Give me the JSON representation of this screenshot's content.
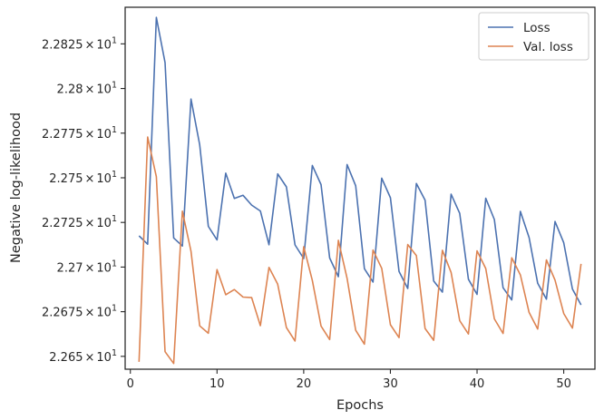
{
  "chart_data": {
    "type": "line",
    "xlabel": "Epochs",
    "ylabel": "Negative log-likelihood",
    "xlim": [
      -0.6,
      53.6
    ],
    "ylim": [
      22.6428,
      22.8455
    ],
    "grid": false,
    "legend_position": "top-right",
    "xticks": [
      0,
      10,
      20,
      30,
      40,
      50
    ],
    "yticks": [
      {
        "value": 22.65,
        "mantissa": "2.265",
        "exponent": "1"
      },
      {
        "value": 22.675,
        "mantissa": "2.2675",
        "exponent": "1"
      },
      {
        "value": 22.7,
        "mantissa": "2.27",
        "exponent": "1"
      },
      {
        "value": 22.725,
        "mantissa": "2.2725",
        "exponent": "1"
      },
      {
        "value": 22.75,
        "mantissa": "2.275",
        "exponent": "1"
      },
      {
        "value": 22.775,
        "mantissa": "2.2775",
        "exponent": "1"
      },
      {
        "value": 22.8,
        "mantissa": "2.28",
        "exponent": "1"
      },
      {
        "value": 22.825,
        "mantissa": "2.2825",
        "exponent": "1"
      }
    ],
    "tick_times": "×",
    "tick_base": "10",
    "x": [
      1,
      2,
      3,
      4,
      5,
      6,
      7,
      8,
      9,
      10,
      11,
      12,
      13,
      14,
      15,
      16,
      17,
      18,
      19,
      20,
      21,
      22,
      23,
      24,
      25,
      26,
      27,
      28,
      29,
      30,
      31,
      32,
      33,
      34,
      35,
      36,
      37,
      38,
      39,
      40,
      41,
      42,
      43,
      44,
      45,
      46,
      47,
      48,
      49,
      50,
      51,
      52
    ],
    "series": [
      {
        "name": "Loss",
        "color": "#4c72b0",
        "values": [
          22.7175,
          22.7128,
          22.8398,
          22.8145,
          22.7163,
          22.7118,
          22.7941,
          22.7685,
          22.7228,
          22.7152,
          22.7526,
          22.7384,
          22.7402,
          22.7347,
          22.7314,
          22.7125,
          22.7522,
          22.7449,
          22.7124,
          22.7048,
          22.7569,
          22.7462,
          22.7051,
          22.6946,
          22.7574,
          22.7455,
          22.6991,
          22.6916,
          22.7498,
          22.7388,
          22.6975,
          22.688,
          22.7468,
          22.7375,
          22.6922,
          22.686,
          22.7408,
          22.7301,
          22.6932,
          22.6847,
          22.7385,
          22.7266,
          22.6884,
          22.6816,
          22.7312,
          22.7165,
          22.6909,
          22.682,
          22.7255,
          22.7136,
          22.6877,
          22.6788
        ]
      },
      {
        "name": "Val. loss",
        "color": "#dd8452",
        "values": [
          22.6469,
          22.7728,
          22.7506,
          22.6526,
          22.646,
          22.7313,
          22.7089,
          22.6671,
          22.6629,
          22.6986,
          22.6845,
          22.6874,
          22.6832,
          22.6829,
          22.6672,
          22.6998,
          22.6904,
          22.6661,
          22.6586,
          22.7114,
          22.6925,
          22.667,
          22.6594,
          22.715,
          22.6937,
          22.6646,
          22.6568,
          22.7095,
          22.6993,
          22.6677,
          22.6605,
          22.7126,
          22.7064,
          22.6656,
          22.659,
          22.7094,
          22.697,
          22.67,
          22.6625,
          22.7091,
          22.6992,
          22.671,
          22.6628,
          22.7052,
          22.6956,
          22.6746,
          22.6653,
          22.704,
          22.6927,
          22.674,
          22.6658,
          22.7018
        ]
      }
    ]
  }
}
